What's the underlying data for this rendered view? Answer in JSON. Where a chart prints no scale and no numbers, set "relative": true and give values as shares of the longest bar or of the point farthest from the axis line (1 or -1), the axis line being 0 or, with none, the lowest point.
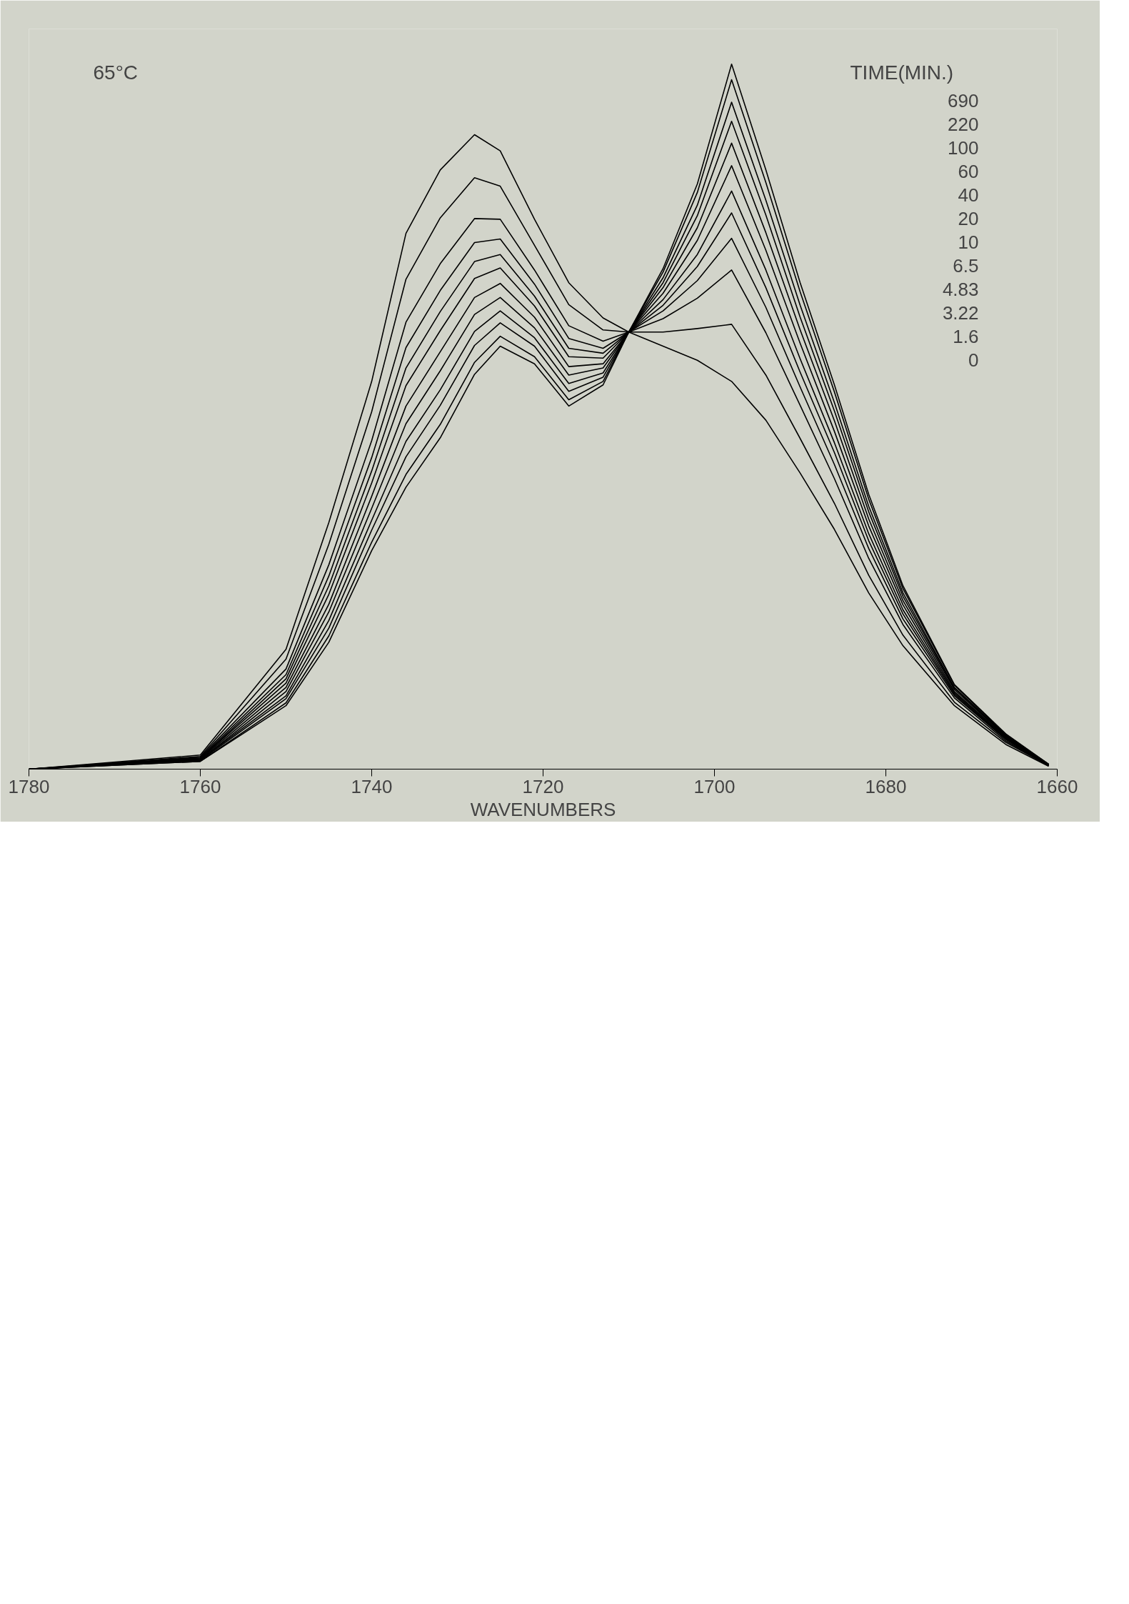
{
  "chart_data": {
    "type": "line",
    "relative": true,
    "xlabel": "WAVENUMBERS",
    "xlim": [
      1780,
      1660
    ],
    "xticks": [
      1780,
      1760,
      1740,
      1720,
      1700,
      1680,
      1660
    ],
    "x": [
      1780,
      1760,
      1750,
      1745,
      1740,
      1736,
      1732,
      1728,
      1725,
      1721,
      1717,
      1713,
      1710,
      1706,
      1702,
      1698,
      1694,
      1690,
      1686,
      1682,
      1678,
      1672,
      1666,
      1661
    ],
    "annotations": [
      "65°C",
      "TIME(MIN.)",
      "690",
      "220",
      "100",
      "60",
      "40",
      "20",
      "10",
      "6.5",
      "4.83",
      "3.22",
      "1.6",
      "0"
    ],
    "series": [
      {
        "color": "#000000",
        "values": [
          0,
          0.011,
          0.09,
          0.18,
          0.31,
          0.4,
          0.47,
          0.56,
          0.6,
          0.575,
          0.515,
          0.545,
          0.62,
          0.71,
          0.83,
          1.0,
          0.85,
          0.69,
          0.545,
          0.39,
          0.26,
          0.12,
          0.05,
          0.007
        ]
      },
      {
        "color": "#000000",
        "values": [
          0,
          0.011,
          0.094,
          0.189,
          0.322,
          0.418,
          0.489,
          0.577,
          0.614,
          0.585,
          0.524,
          0.55,
          0.62,
          0.705,
          0.818,
          0.978,
          0.832,
          0.677,
          0.535,
          0.383,
          0.256,
          0.119,
          0.049,
          0.007
        ]
      },
      {
        "color": "#000000",
        "values": [
          0,
          0.012,
          0.1,
          0.2,
          0.339,
          0.443,
          0.516,
          0.601,
          0.633,
          0.6,
          0.536,
          0.556,
          0.62,
          0.697,
          0.8,
          0.946,
          0.807,
          0.658,
          0.52,
          0.373,
          0.25,
          0.116,
          0.048,
          0.007
        ]
      },
      {
        "color": "#000000",
        "values": [
          0,
          0.013,
          0.104,
          0.211,
          0.353,
          0.465,
          0.538,
          0.621,
          0.65,
          0.612,
          0.547,
          0.562,
          0.62,
          0.69,
          0.785,
          0.919,
          0.786,
          0.641,
          0.508,
          0.365,
          0.245,
          0.115,
          0.047,
          0.006
        ]
      },
      {
        "color": "#000000",
        "values": [
          0,
          0.013,
          0.11,
          0.223,
          0.37,
          0.49,
          0.565,
          0.645,
          0.669,
          0.626,
          0.559,
          0.569,
          0.62,
          0.683,
          0.768,
          0.888,
          0.761,
          0.623,
          0.494,
          0.355,
          0.239,
          0.113,
          0.046,
          0.006
        ]
      },
      {
        "color": "#000000",
        "values": [
          0,
          0.014,
          0.116,
          0.234,
          0.387,
          0.515,
          0.592,
          0.669,
          0.689,
          0.641,
          0.571,
          0.575,
          0.62,
          0.675,
          0.75,
          0.856,
          0.736,
          0.604,
          0.479,
          0.345,
          0.233,
          0.11,
          0.045,
          0.006
        ]
      },
      {
        "color": "#000000",
        "values": [
          0,
          0.015,
          0.122,
          0.248,
          0.406,
          0.544,
          0.622,
          0.696,
          0.711,
          0.657,
          0.585,
          0.583,
          0.62,
          0.666,
          0.73,
          0.82,
          0.708,
          0.582,
          0.463,
          0.334,
          0.226,
          0.108,
          0.044,
          0.006
        ]
      },
      {
        "color": "#000000",
        "values": [
          0,
          0.015,
          0.128,
          0.26,
          0.423,
          0.569,
          0.649,
          0.72,
          0.73,
          0.671,
          0.597,
          0.59,
          0.62,
          0.658,
          0.713,
          0.789,
          0.683,
          0.563,
          0.449,
          0.324,
          0.22,
          0.106,
          0.043,
          0.006
        ]
      },
      {
        "color": "#000000",
        "values": [
          0,
          0.016,
          0.134,
          0.274,
          0.442,
          0.598,
          0.679,
          0.747,
          0.752,
          0.688,
          0.611,
          0.597,
          0.62,
          0.65,
          0.693,
          0.753,
          0.655,
          0.542,
          0.432,
          0.313,
          0.213,
          0.104,
          0.042,
          0.005
        ]
      },
      {
        "color": "#000000",
        "values": [
          0,
          0.017,
          0.142,
          0.29,
          0.466,
          0.634,
          0.717,
          0.781,
          0.78,
          0.708,
          0.629,
          0.607,
          0.62,
          0.639,
          0.668,
          0.708,
          0.619,
          0.516,
          0.412,
          0.299,
          0.205,
          0.101,
          0.04,
          0.005
        ]
      },
      {
        "color": "#000000",
        "values": [
          0,
          0.018,
          0.156,
          0.319,
          0.507,
          0.695,
          0.782,
          0.839,
          0.827,
          0.743,
          0.659,
          0.623,
          0.62,
          0.62,
          0.625,
          0.631,
          0.559,
          0.469,
          0.377,
          0.275,
          0.19,
          0.095,
          0.038,
          0.005
        ]
      },
      {
        "color": "#000000",
        "values": [
          0,
          0.02,
          0.17,
          0.35,
          0.55,
          0.76,
          0.85,
          0.9,
          0.877,
          0.78,
          0.69,
          0.64,
          0.62,
          0.6,
          0.58,
          0.55,
          0.495,
          0.42,
          0.34,
          0.25,
          0.175,
          0.09,
          0.035,
          0.004
        ]
      }
    ]
  }
}
